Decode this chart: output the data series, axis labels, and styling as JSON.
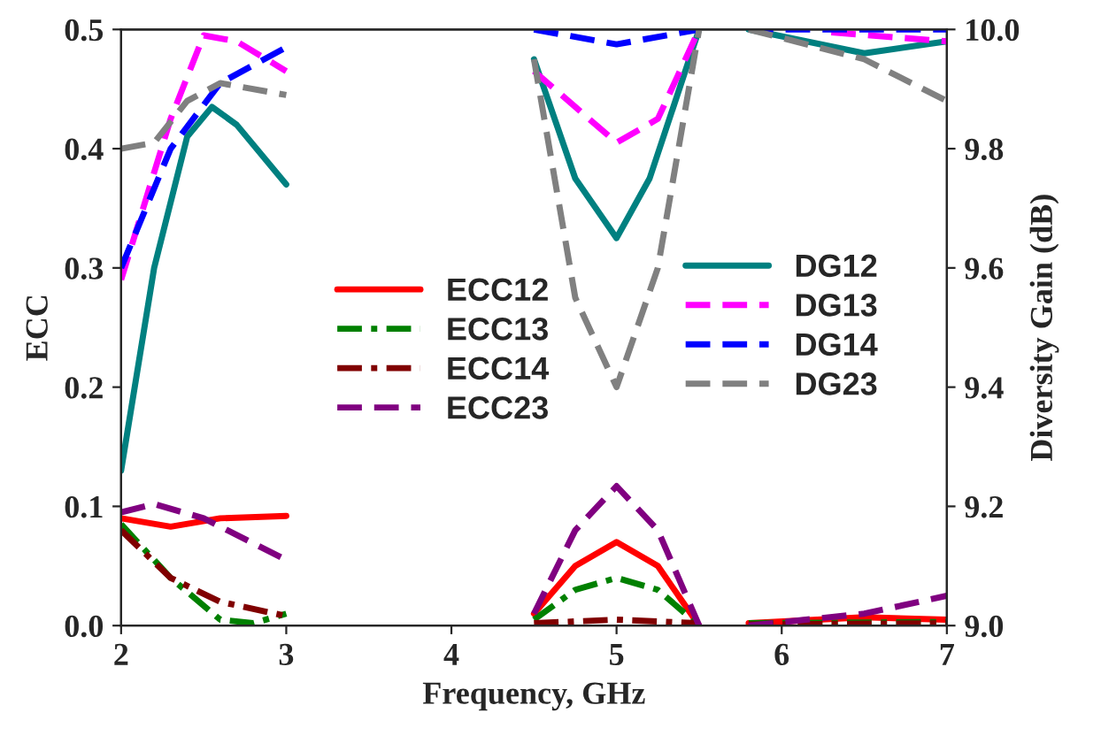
{
  "chart_data": {
    "type": "line",
    "xlabel": "Frequency, GHz",
    "ylabel": "ECC",
    "y2label": "Diversity Gain (dB)",
    "xlim": [
      2,
      7
    ],
    "xticks": [
      2,
      3,
      4,
      5,
      6,
      7
    ],
    "ylim": [
      0,
      0.5
    ],
    "yticks": [
      {
        "value": 0,
        "label": "0.0"
      },
      0.1,
      0.2,
      0.3,
      0.4,
      0.5
    ],
    "y2lim": [
      9,
      10
    ],
    "y2ticks": [
      {
        "value": 9,
        "label": "9.0"
      },
      9.2,
      9.4,
      9.6,
      9.8,
      {
        "value": 10,
        "label": "10.0"
      }
    ],
    "grid": false,
    "legend": "center",
    "marker": "none",
    "series": [
      {
        "name": "ECC12",
        "color": "#ff0000",
        "line_style": "solid",
        "x": [
          2,
          2.3,
          2.6,
          3,
          3.5,
          4.5,
          4.75,
          5,
          5.25,
          5.5,
          5.65,
          5.8,
          6.5,
          7
        ],
        "values": [
          0.09,
          0.083,
          0.09,
          0.092,
          null,
          0.01,
          0.05,
          0.07,
          0.05,
          0.0,
          null,
          0.002,
          0.007,
          0.005
        ]
      },
      {
        "name": "ECC13",
        "color": "#008000",
        "line_style": "dashdot",
        "x": [
          2,
          2.3,
          2.6,
          2.8,
          3,
          3.5,
          4.5,
          4.75,
          5,
          5.25,
          5.5,
          5.65,
          5.8,
          7
        ],
        "values": [
          0.085,
          0.04,
          0.005,
          0.002,
          0.01,
          null,
          0.005,
          0.03,
          0.04,
          0.03,
          0.0,
          null,
          0.002,
          0.003
        ]
      },
      {
        "name": "ECC14",
        "color": "#800000",
        "line_style": "dashdot",
        "x": [
          2,
          2.3,
          2.6,
          3,
          3.5,
          4.5,
          5,
          5.5,
          5.65,
          5.8,
          7
        ],
        "values": [
          0.08,
          0.04,
          0.02,
          0.008,
          null,
          0.002,
          0.005,
          0.002,
          null,
          0.001,
          0.002
        ]
      },
      {
        "name": "ECC23",
        "color": "#800080",
        "line_style": "dashed",
        "x": [
          2,
          2.2,
          2.5,
          3,
          3.5,
          4.5,
          4.75,
          5,
          5.25,
          5.5,
          5.65,
          5.8,
          6.5,
          7
        ],
        "values": [
          0.095,
          0.102,
          0.09,
          0.055,
          null,
          0.01,
          0.08,
          0.117,
          0.08,
          0.0,
          null,
          0.0,
          0.01,
          0.025
        ]
      },
      {
        "name": "DG12",
        "color": "#008080",
        "line_style": "solid",
        "axis": "y2",
        "x": [
          2,
          2.2,
          2.4,
          2.55,
          2.7,
          3,
          3.5,
          4.5,
          4.75,
          5,
          5.2,
          5.5,
          5.65,
          5.8,
          6.5,
          7
        ],
        "values": [
          9.26,
          9.6,
          9.82,
          9.87,
          9.84,
          9.74,
          null,
          9.95,
          9.75,
          9.65,
          9.75,
          10.0,
          null,
          10.0,
          9.96,
          9.98
        ]
      },
      {
        "name": "DG13",
        "color": "#ff00ff",
        "line_style": "dashed",
        "axis": "y2",
        "x": [
          2,
          2.3,
          2.5,
          2.7,
          3,
          3.5,
          4.5,
          5,
          5.25,
          5.5,
          5.65,
          5.8,
          6.3,
          7
        ],
        "values": [
          9.58,
          9.85,
          9.99,
          9.98,
          9.93,
          null,
          9.93,
          9.81,
          9.85,
          10.0,
          null,
          null,
          9.995,
          9.98
        ]
      },
      {
        "name": "DG14",
        "color": "#0000ff",
        "line_style": "dashed",
        "axis": "y2",
        "x": [
          2,
          2.3,
          2.6,
          3,
          3.5,
          4.5,
          5,
          5.5,
          5.65,
          5.8,
          7
        ],
        "values": [
          9.6,
          9.8,
          9.91,
          9.97,
          null,
          10.0,
          9.975,
          10.0,
          null,
          10.0,
          10.0
        ]
      },
      {
        "name": "DG23",
        "color": "#808080",
        "line_style": "dashed",
        "axis": "y2",
        "x": [
          2,
          2.2,
          2.4,
          2.6,
          3,
          3.5,
          4.5,
          4.75,
          5,
          5.25,
          5.5,
          5.65,
          5.8,
          6.5,
          7
        ],
        "values": [
          9.8,
          9.81,
          9.88,
          9.91,
          9.89,
          null,
          9.95,
          9.55,
          9.4,
          9.6,
          10.0,
          null,
          10.0,
          9.95,
          9.88
        ]
      }
    ]
  }
}
